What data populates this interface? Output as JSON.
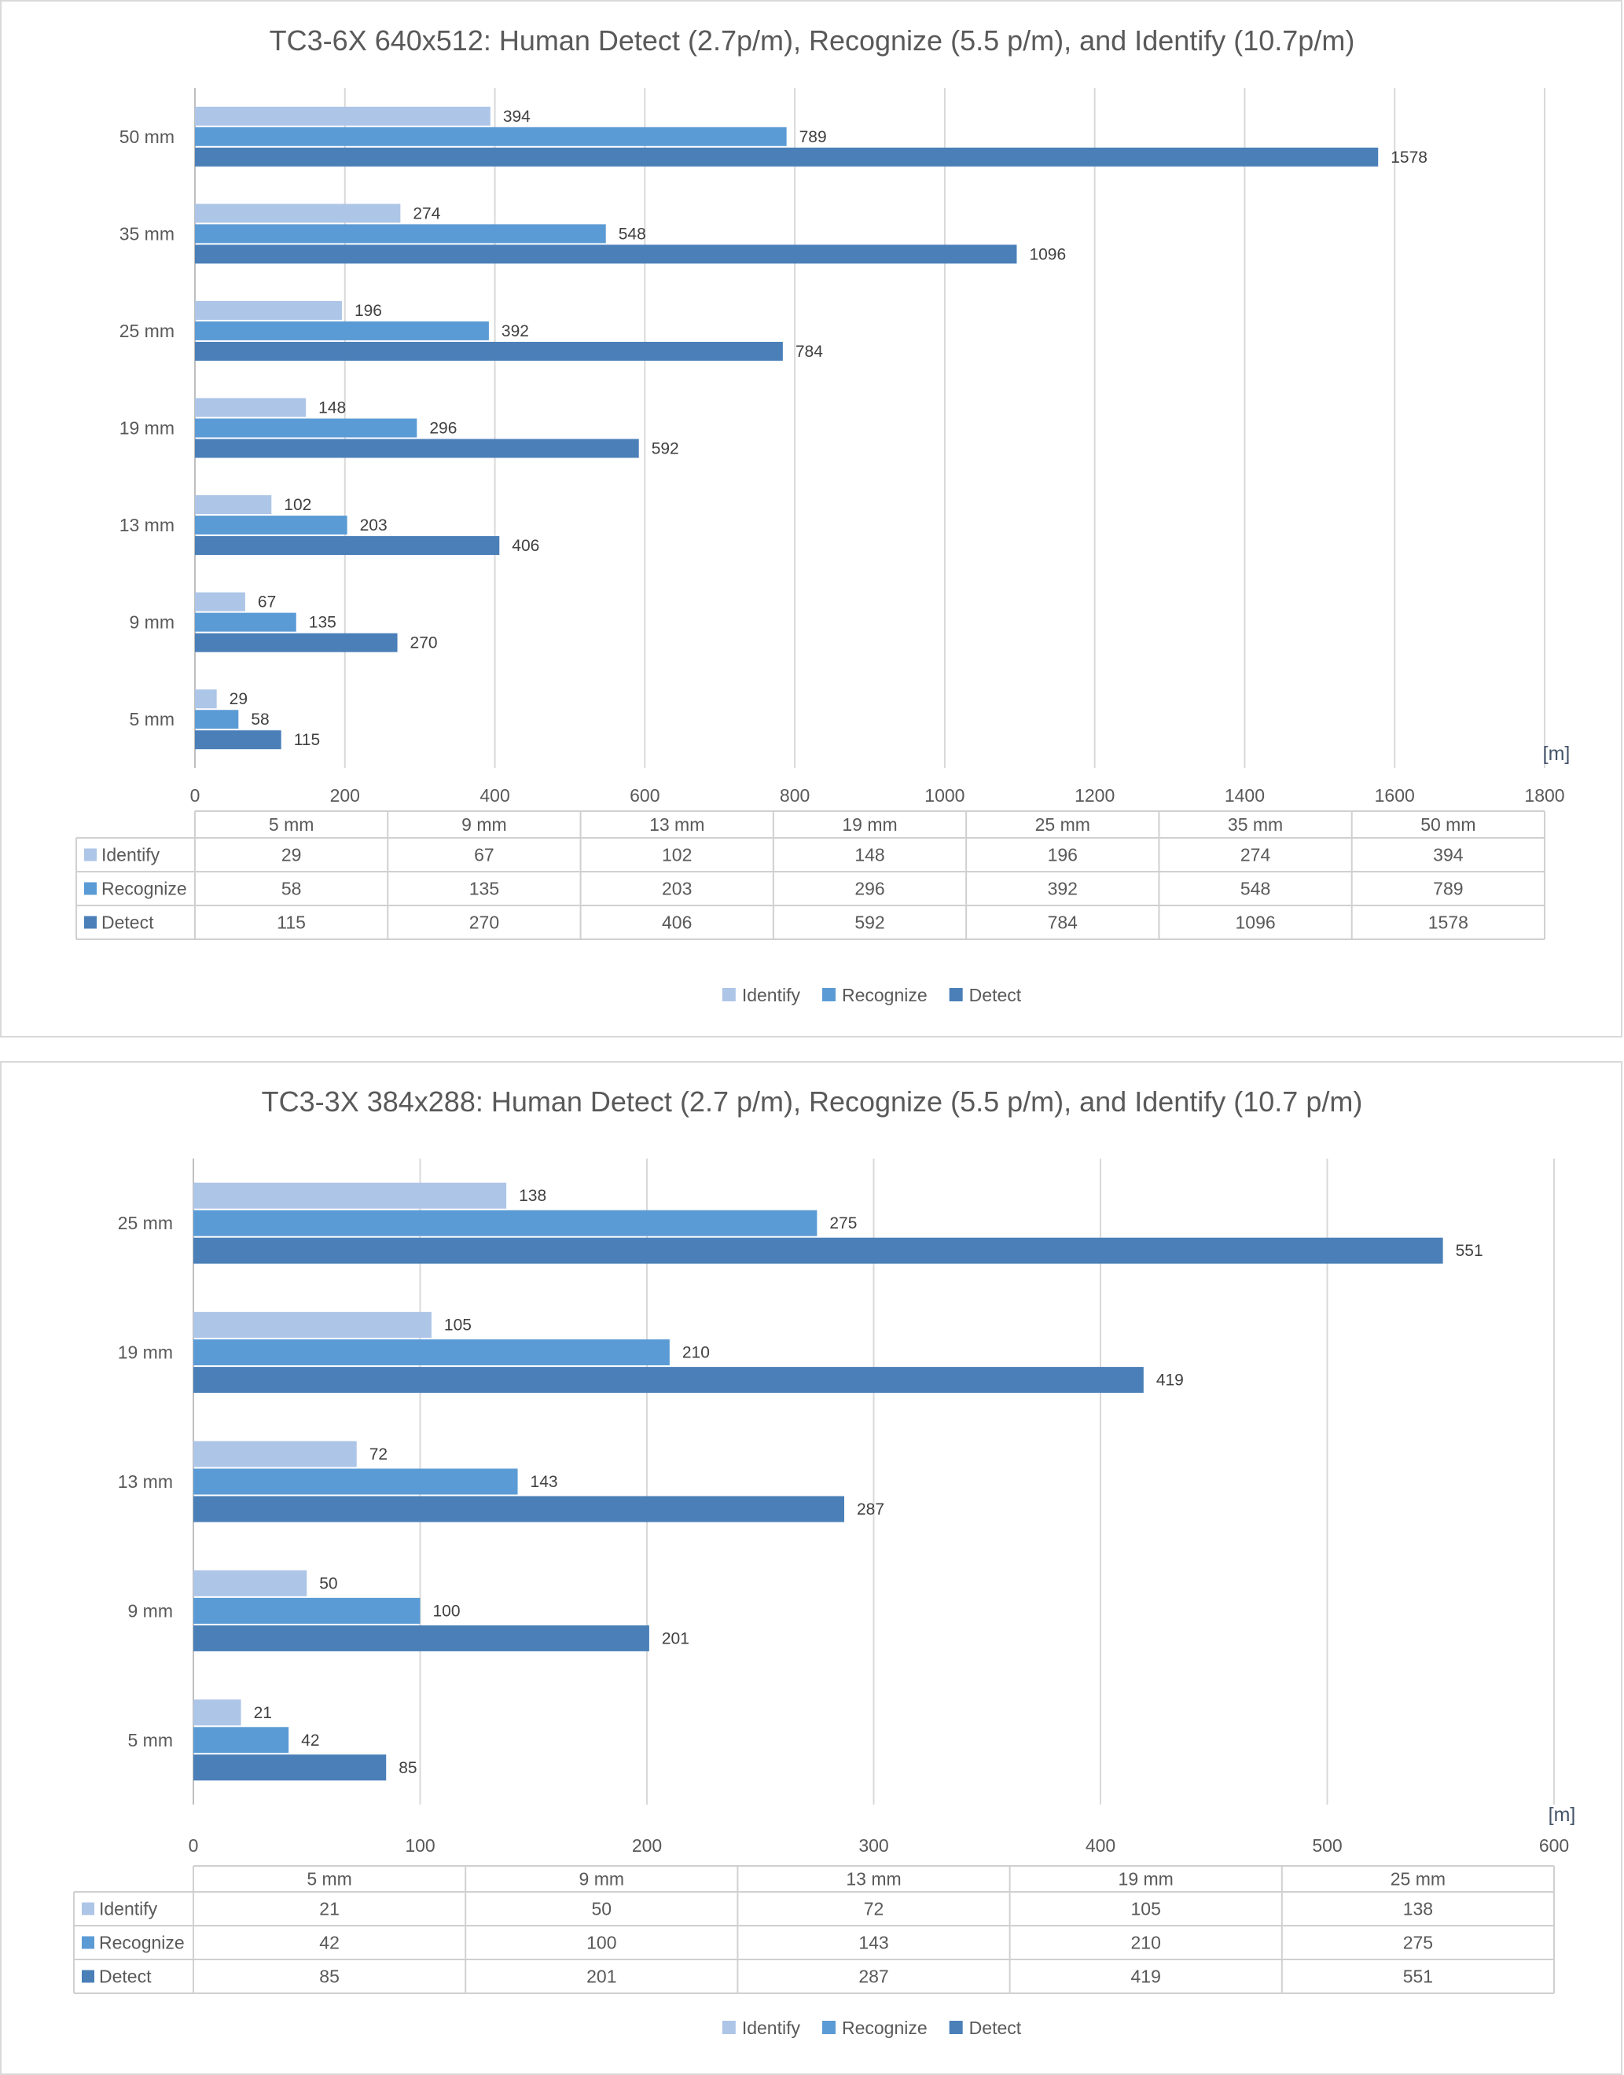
{
  "colors": {
    "identify": "#adc5e7",
    "recognize": "#5b9bd5",
    "detect": "#4a7fb8",
    "grid": "#d9d9d9",
    "text": "#595959"
  },
  "chart_data": [
    {
      "type": "bar",
      "orientation": "horizontal",
      "title": "TC3-6X 640x512: Human Detect (2.7p/m), Recognize (5.5 p/m), and Identify (10.7p/m)",
      "unit_label": "[m]",
      "xlim": [
        0,
        1800
      ],
      "ticks": [
        0,
        200,
        400,
        600,
        800,
        1000,
        1200,
        1400,
        1600,
        1800
      ],
      "grid": true,
      "legend_position": "bottom",
      "categories": [
        "5 mm",
        "9 mm",
        "13 mm",
        "19 mm",
        "25 mm",
        "35 mm",
        "50 mm"
      ],
      "series": [
        {
          "name": "Identify",
          "color_key": "identify",
          "values": [
            29,
            67,
            102,
            148,
            196,
            274,
            394
          ]
        },
        {
          "name": "Recognize",
          "color_key": "recognize",
          "values": [
            58,
            135,
            203,
            296,
            392,
            548,
            789
          ]
        },
        {
          "name": "Detect",
          "color_key": "detect",
          "values": [
            115,
            270,
            406,
            592,
            784,
            1096,
            1578
          ]
        }
      ]
    },
    {
      "type": "bar",
      "orientation": "horizontal",
      "title": "TC3-3X 384x288: Human Detect (2.7 p/m), Recognize (5.5 p/m), and Identify (10.7 p/m)",
      "unit_label": "[m]",
      "xlim": [
        0,
        600
      ],
      "ticks": [
        0,
        100,
        200,
        300,
        400,
        500,
        600
      ],
      "grid": true,
      "legend_position": "bottom",
      "categories": [
        "5 mm",
        "9 mm",
        "13 mm",
        "19 mm",
        "25 mm"
      ],
      "series": [
        {
          "name": "Identify",
          "color_key": "identify",
          "values": [
            21,
            50,
            72,
            105,
            138
          ]
        },
        {
          "name": "Recognize",
          "color_key": "recognize",
          "values": [
            42,
            100,
            143,
            210,
            275
          ]
        },
        {
          "name": "Detect",
          "color_key": "detect",
          "values": [
            85,
            201,
            287,
            419,
            551
          ]
        }
      ]
    }
  ]
}
